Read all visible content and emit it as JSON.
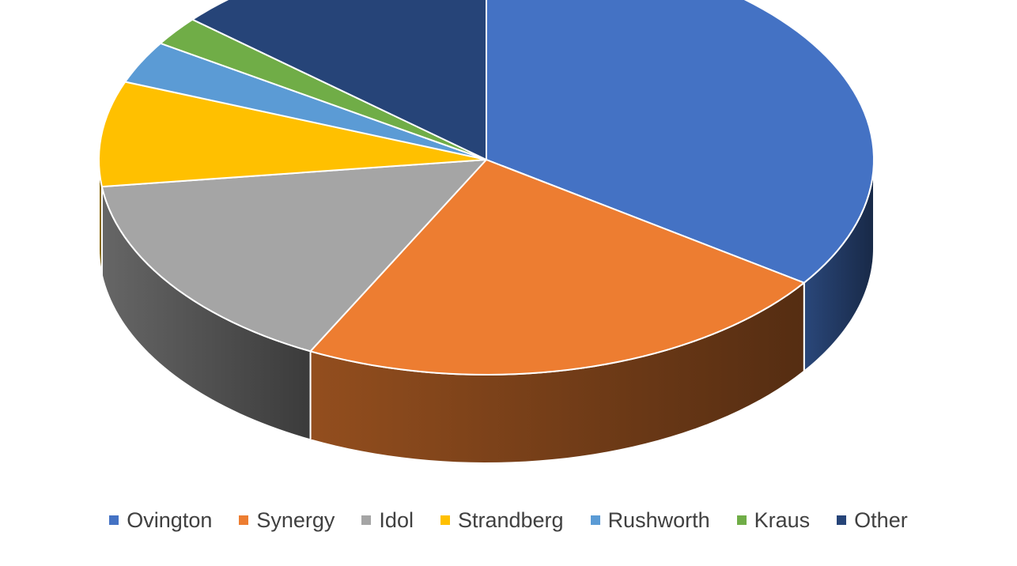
{
  "chart_data": {
    "type": "pie",
    "style": "3d",
    "title": "",
    "legend_position": "bottom",
    "categories": [
      "Ovington",
      "Synergy",
      "Idol",
      "Strandberg",
      "Rushworth",
      "Kraus",
      "Other"
    ],
    "values": [
      34.7,
      22.8,
      15.5,
      7.9,
      3.2,
      2.2,
      13.7
    ],
    "colors": [
      "#4472C4",
      "#ED7D31",
      "#A5A5A5",
      "#FFC000",
      "#5B9BD5",
      "#70AD47",
      "#264478"
    ]
  }
}
